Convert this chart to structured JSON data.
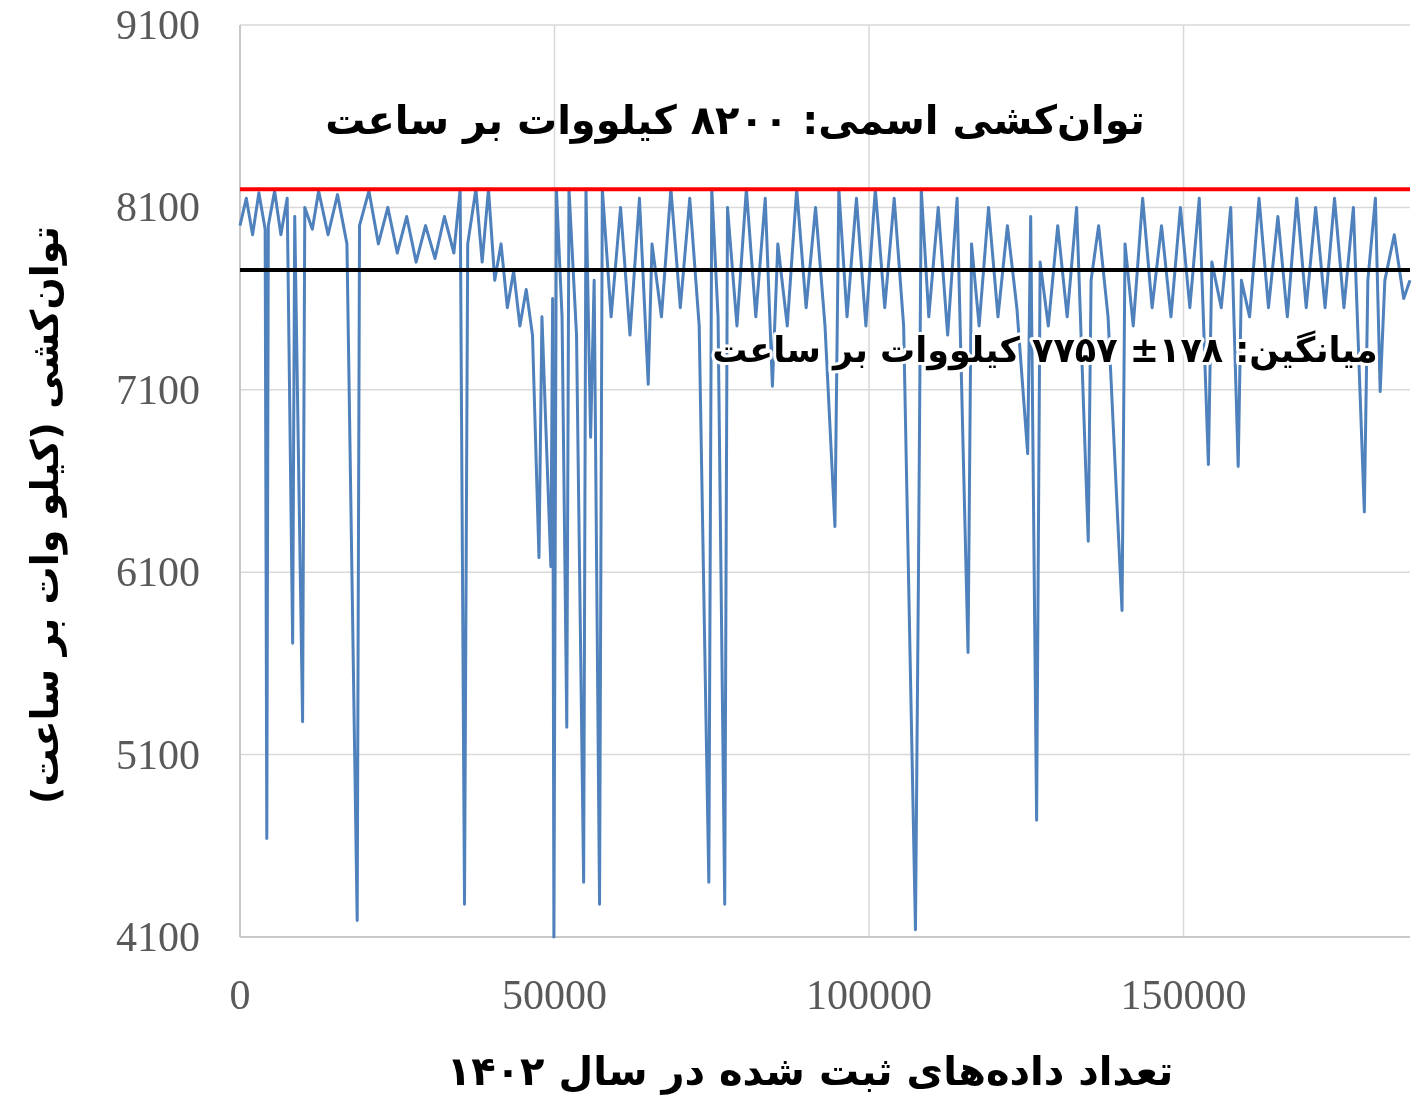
{
  "chart_data": {
    "type": "line",
    "xlabel": "تعداد داده‌های ثبت شده در سال ۱۴۰۲",
    "ylabel": "توان‌کشی (کیلو وات بر ساعت)",
    "xlim": [
      0,
      186000
    ],
    "xticks": [
      0,
      50000,
      100000,
      150000
    ],
    "ylim": [
      4100,
      9100
    ],
    "yticks": [
      4100,
      5100,
      6100,
      7100,
      8100,
      9100
    ],
    "grid": true,
    "ref_lines": [
      {
        "axis": "y",
        "value": 8200,
        "label": "توان‌کشی اسمی: ۸۲۰۰ کیلووات بر ساعت",
        "color": "#ff0000"
      },
      {
        "axis": "y",
        "value": 7757,
        "label": "میانگین: ۱۷۸± ۷۷۵۷ کیلووات بر ساعت",
        "color": "#000000"
      }
    ],
    "series": [
      {
        "color": "#4f81bd",
        "x": [
          0,
          1000,
          2000,
          3000,
          4000,
          4260,
          4500,
          5500,
          6500,
          7500,
          8370,
          8700,
          9950,
          10300,
          11500,
          12500,
          14000,
          15500,
          17000,
          18630,
          19000,
          20500,
          22000,
          23500,
          25000,
          26500,
          28000,
          29500,
          31000,
          32500,
          34000,
          35000,
          35690,
          36200,
          37500,
          38500,
          39500,
          40500,
          41500,
          42500,
          43500,
          44500,
          45500,
          46500,
          47530,
          48000,
          49420,
          49700,
          49900,
          50300,
          51200,
          51950,
          52300,
          53500,
          54630,
          55000,
          55740,
          56300,
          57160,
          57600,
          59000,
          60500,
          62000,
          63500,
          64900,
          65500,
          67000,
          68500,
          70000,
          71500,
          73000,
          74530,
          75000,
          76000,
          77060,
          77500,
          79000,
          80500,
          82000,
          83500,
          84640,
          85500,
          87000,
          88500,
          90000,
          91500,
          93000,
          94580,
          95200,
          96500,
          98000,
          99500,
          101000,
          102500,
          104000,
          105500,
          107380,
          107850,
          108300,
          109500,
          111000,
          112500,
          114000,
          115740,
          116300,
          117500,
          119000,
          120500,
          122000,
          123500,
          125220,
          125700,
          126640,
          127200,
          128500,
          130000,
          131500,
          133000,
          134850,
          135300,
          136500,
          138000,
          140220,
          140700,
          142000,
          143500,
          145000,
          146500,
          148000,
          149500,
          151000,
          152500,
          153950,
          154500,
          156000,
          157500,
          158690,
          159200,
          160500,
          162000,
          163500,
          165000,
          166500,
          168000,
          169500,
          171000,
          172500,
          174000,
          175500,
          177000,
          178740,
          179300,
          180500,
          181260,
          182000,
          183500,
          185000,
          186000
        ],
        "values": [
          8000,
          8150,
          7950,
          8180,
          7980,
          4640,
          8000,
          8190,
          7950,
          8150,
          5710,
          8050,
          5280,
          8100,
          7980,
          8190,
          7950,
          8170,
          7900,
          4190,
          8000,
          8190,
          7900,
          8100,
          7850,
          8050,
          7800,
          8000,
          7820,
          8050,
          7850,
          8200,
          4280,
          7900,
          8200,
          7800,
          8200,
          7700,
          7900,
          7550,
          7750,
          7450,
          7650,
          7400,
          6180,
          7500,
          6130,
          7600,
          4100,
          8200,
          7500,
          5250,
          8200,
          7400,
          4400,
          8200,
          6840,
          7700,
          4280,
          8200,
          7500,
          8100,
          7400,
          8150,
          7130,
          7900,
          7500,
          8200,
          7550,
          8150,
          7450,
          4400,
          8200,
          7500,
          4280,
          8100,
          7450,
          8200,
          7500,
          8150,
          7120,
          7900,
          7450,
          8200,
          7550,
          8100,
          7450,
          6350,
          8200,
          7500,
          8150,
          7450,
          8200,
          7550,
          8150,
          7450,
          4140,
          6050,
          8200,
          7500,
          8100,
          7400,
          8150,
          5660,
          7900,
          7450,
          8100,
          7500,
          8000,
          7550,
          6750,
          8050,
          4740,
          7800,
          7450,
          8000,
          7500,
          8100,
          6270,
          7700,
          8000,
          7500,
          5890,
          7900,
          7450,
          8150,
          7550,
          8000,
          7500,
          8100,
          7550,
          8150,
          6690,
          7800,
          7550,
          8100,
          6680,
          7700,
          7500,
          8150,
          7550,
          8050,
          7500,
          8150,
          7550,
          8100,
          7550,
          8150,
          7550,
          8100,
          6430,
          7700,
          8150,
          7090,
          7700,
          7950,
          7600,
          7700
        ]
      }
    ]
  }
}
